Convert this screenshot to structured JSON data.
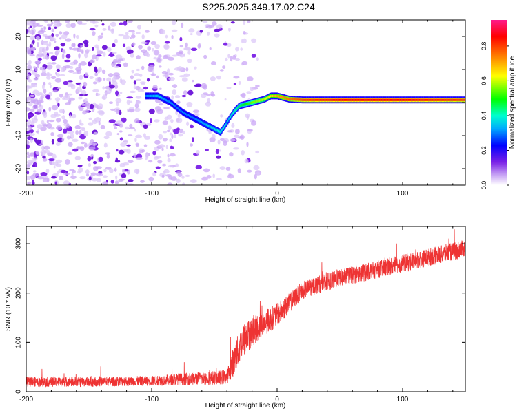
{
  "chart_data": [
    {
      "type": "heatmap",
      "title": "S225.2025.349.17.02.C24",
      "xlabel": "Height of straight line (km)",
      "ylabel": "Frequency (Hz)",
      "xlim": [
        -200,
        150
      ],
      "ylim": [
        -25,
        25
      ],
      "xticks": [
        -200,
        -100,
        0,
        100
      ],
      "xtick_labels": [
        "-200",
        "-100",
        "0",
        "100"
      ],
      "yticks": [
        -20,
        -10,
        0,
        10,
        20
      ],
      "ytick_labels": [
        "-20",
        "-10",
        "0",
        "10",
        "20"
      ],
      "colorbar": {
        "label": "Normalized spectral amplitude",
        "range": [
          0,
          0.95
        ],
        "ticks": [
          0,
          0.2,
          0.4,
          0.6,
          0.8
        ],
        "tick_labels": [
          "0.0",
          "0.2",
          "0.4",
          "0.6",
          "0.8"
        ]
      },
      "ridge": {
        "x": [
          -105,
          -95,
          -85,
          -75,
          -65,
          -55,
          -45,
          -40,
          -35,
          -30,
          -20,
          -10,
          -5,
          0,
          10,
          20,
          50,
          100,
          150
        ],
        "y": [
          2,
          2,
          0,
          -3,
          -5,
          -7,
          -9,
          -6,
          -3,
          -1,
          0,
          1,
          2,
          2,
          1,
          0.8,
          0.8,
          0.8,
          0.8
        ],
        "amplitude": [
          0.3,
          0.35,
          0.3,
          0.3,
          0.3,
          0.35,
          0.4,
          0.35,
          0.4,
          0.45,
          0.55,
          0.6,
          0.65,
          0.7,
          0.75,
          0.8,
          0.85,
          0.85,
          0.8
        ]
      },
      "noise_region": [
        -200,
        -30
      ]
    },
    {
      "type": "line",
      "title": "",
      "xlabel": "Height of straight line (km)",
      "ylabel": "SNR (10 * v/v)",
      "xlim": [
        -200,
        150
      ],
      "ylim": [
        0,
        335
      ],
      "xticks": [
        -200,
        -100,
        0,
        100
      ],
      "xtick_labels": [
        "-200",
        "-100",
        "0",
        "100"
      ],
      "yticks": [
        0,
        100,
        200,
        300
      ],
      "ytick_labels": [
        "0",
        "100",
        "200",
        "300"
      ],
      "series": [
        {
          "name": "SNR",
          "color": "#ee3333",
          "x": [
            -200,
            -150,
            -100,
            -80,
            -50,
            -40,
            -35,
            -30,
            -25,
            -20,
            -10,
            0,
            10,
            20,
            30,
            50,
            75,
            100,
            125,
            150
          ],
          "y": [
            20,
            20,
            22,
            25,
            28,
            30,
            60,
            90,
            110,
            120,
            140,
            155,
            180,
            205,
            215,
            230,
            245,
            260,
            275,
            290
          ],
          "noise_amplitude": [
            10,
            10,
            10,
            12,
            14,
            15,
            30,
            35,
            35,
            30,
            25,
            25,
            20,
            18,
            18,
            18,
            18,
            18,
            18,
            18
          ]
        }
      ]
    }
  ]
}
